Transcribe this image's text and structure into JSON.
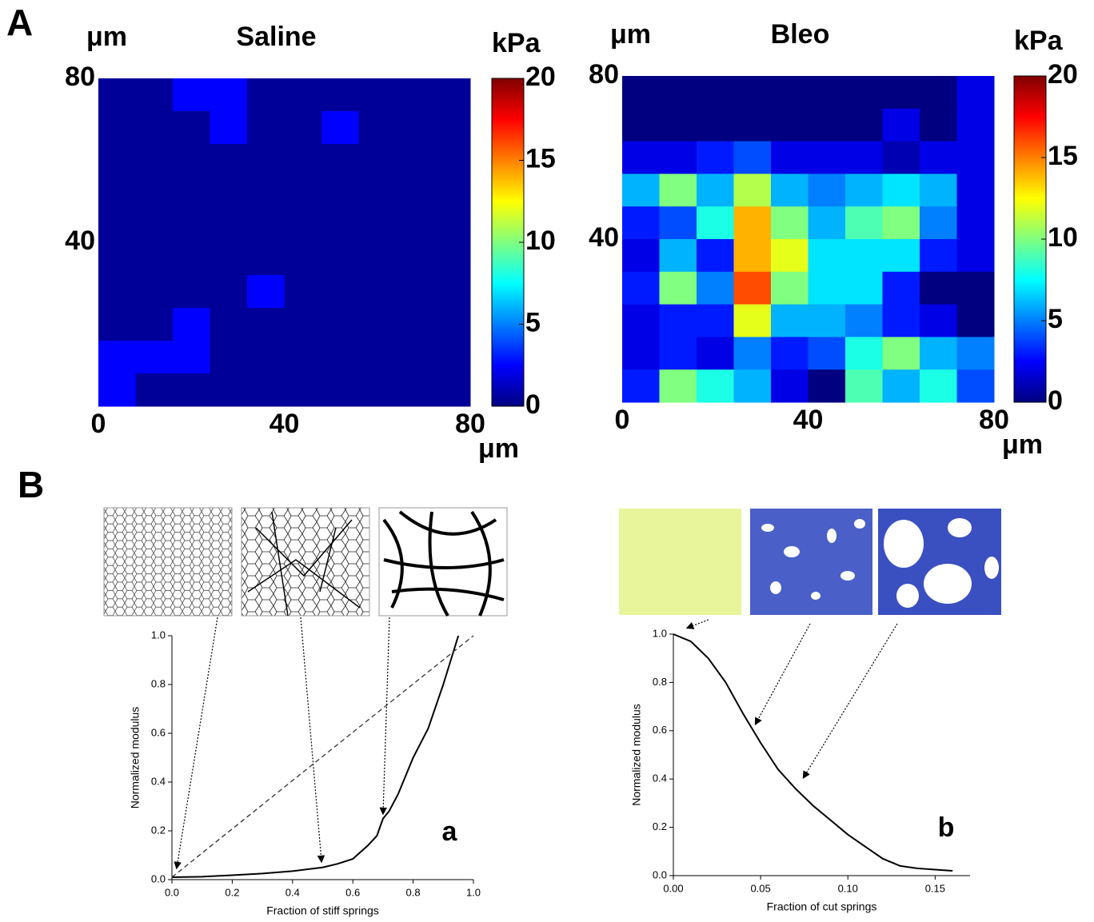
{
  "panel_labels": [
    "A",
    "B"
  ],
  "chart_data": [
    {
      "type": "heatmap",
      "title": "Saline",
      "x_unit": "μm",
      "y_unit": "μm",
      "colorbar_label": "kPa",
      "xlim": [
        0,
        80
      ],
      "ylim": [
        0,
        80
      ],
      "xticks": [
        0,
        40,
        80
      ],
      "yticks": [
        40,
        80
      ],
      "zlim": [
        0,
        20
      ],
      "zticks": [
        0,
        5,
        10,
        15,
        20
      ],
      "colormap": "jet",
      "z": [
        [
          0.5,
          0.5,
          2.5,
          2.5,
          0.5,
          0.5,
          0.5,
          0.5,
          0.5,
          0.5
        ],
        [
          0.5,
          0.5,
          0.5,
          2.5,
          0.5,
          0.5,
          2.5,
          0.5,
          0.5,
          0.5
        ],
        [
          0.5,
          0.5,
          0.5,
          0.5,
          0.5,
          0.5,
          0.5,
          0.5,
          0.5,
          0.5
        ],
        [
          0.5,
          0.5,
          0.5,
          0.5,
          0.5,
          0.5,
          0.5,
          0.5,
          0.5,
          0.5
        ],
        [
          0.5,
          0.5,
          0.5,
          0.5,
          0.5,
          0.5,
          0.5,
          0.5,
          0.5,
          0.5
        ],
        [
          0.5,
          0.5,
          0.5,
          0.5,
          0.5,
          0.5,
          0.5,
          0.5,
          0.5,
          0.5
        ],
        [
          0.5,
          0.5,
          0.5,
          0.5,
          2.5,
          0.5,
          0.5,
          0.5,
          0.5,
          0.5
        ],
        [
          0.5,
          0.5,
          2.5,
          0.5,
          0.5,
          0.5,
          0.5,
          0.5,
          0.5,
          0.5
        ],
        [
          2.5,
          2.5,
          2.5,
          0.5,
          0.5,
          0.5,
          0.5,
          0.5,
          0.5,
          0.5
        ],
        [
          2.5,
          0.5,
          0.5,
          0.5,
          0.5,
          0.5,
          0.5,
          0.5,
          0.5,
          0.5
        ]
      ]
    },
    {
      "type": "heatmap",
      "title": "Bleo",
      "x_unit": "μm",
      "y_unit": "μm",
      "colorbar_label": "kPa",
      "xlim": [
        0,
        80
      ],
      "ylim": [
        0,
        80
      ],
      "xticks": [
        0,
        40,
        80
      ],
      "yticks": [
        40,
        80
      ],
      "zlim": [
        0,
        20
      ],
      "zticks": [
        0,
        5,
        10,
        15,
        20
      ],
      "colormap": "jet",
      "z": [
        [
          0,
          0,
          0,
          0,
          0,
          0,
          0,
          0,
          0,
          2
        ],
        [
          0,
          0,
          0,
          0,
          0,
          0,
          0,
          2,
          0,
          2
        ],
        [
          2,
          2,
          3,
          4,
          2,
          2,
          2,
          1,
          2,
          2
        ],
        [
          6,
          10,
          6,
          11,
          6,
          5,
          6,
          7,
          6,
          2
        ],
        [
          3,
          4,
          8,
          14,
          10,
          6,
          9,
          10,
          5,
          2
        ],
        [
          2,
          6,
          3,
          14,
          12,
          7,
          7,
          7,
          3,
          2
        ],
        [
          3,
          10,
          5,
          16,
          10,
          7,
          7,
          3,
          0,
          0
        ],
        [
          2,
          3,
          3,
          12,
          6,
          6,
          5,
          3,
          2,
          0
        ],
        [
          2,
          3,
          2,
          5,
          3,
          4,
          8,
          10,
          6,
          5
        ],
        [
          3,
          10,
          8,
          6,
          2,
          0,
          9,
          6,
          8,
          4
        ]
      ]
    },
    {
      "type": "line",
      "panel_label": "a",
      "xlabel": "Fraction of stiff springs",
      "ylabel": "Normalized modulus",
      "xlim": [
        0,
        1
      ],
      "ylim": [
        0,
        1
      ],
      "xticks": [
        {
          "value": 0,
          "label": "0.0"
        },
        0.2,
        0.4,
        0.6,
        0.8,
        {
          "value": 1,
          "label": "1.0"
        }
      ],
      "yticks": [
        {
          "value": 0,
          "label": "0.0"
        },
        0.2,
        0.4,
        0.6,
        0.8,
        {
          "value": 1,
          "label": "1.0"
        }
      ],
      "series": [
        {
          "style": "solid",
          "color": "#000000",
          "x": [
            0,
            0.1,
            0.2,
            0.3,
            0.4,
            0.5,
            0.55,
            0.6,
            0.65,
            0.68,
            0.7,
            0.72,
            0.75,
            0.8,
            0.85,
            0.9,
            0.95
          ],
          "values": [
            0.01,
            0.012,
            0.018,
            0.025,
            0.035,
            0.05,
            0.065,
            0.085,
            0.14,
            0.18,
            0.25,
            0.28,
            0.35,
            0.5,
            0.62,
            0.8,
            1.0
          ]
        },
        {
          "style": "dashed",
          "color": "#333333",
          "x": [
            0,
            1
          ],
          "values": [
            0.01,
            1.0
          ]
        }
      ]
    },
    {
      "type": "line",
      "panel_label": "b",
      "xlabel": "Fraction of cut springs",
      "ylabel": "Normalized modulus",
      "xlim": [
        0,
        0.17
      ],
      "ylim": [
        0,
        1
      ],
      "xticks": [
        {
          "value": 0,
          "label": "0.00"
        },
        {
          "value": 0.05,
          "label": "0.05"
        },
        {
          "value": 0.1,
          "label": "0.10"
        },
        {
          "value": 0.15,
          "label": "0.15"
        }
      ],
      "yticks": [
        {
          "value": 0,
          "label": "0.0"
        },
        0.2,
        0.4,
        0.6,
        0.8,
        {
          "value": 1,
          "label": "1.0"
        }
      ],
      "series": [
        {
          "style": "solid",
          "color": "#000000",
          "x": [
            0,
            0.01,
            0.02,
            0.03,
            0.04,
            0.05,
            0.06,
            0.07,
            0.08,
            0.09,
            0.1,
            0.11,
            0.12,
            0.13,
            0.14,
            0.15,
            0.16
          ],
          "values": [
            1,
            0.97,
            0.9,
            0.8,
            0.67,
            0.55,
            0.44,
            0.36,
            0.29,
            0.23,
            0.17,
            0.12,
            0.07,
            0.04,
            0.03,
            0.025,
            0.02
          ]
        }
      ]
    }
  ]
}
